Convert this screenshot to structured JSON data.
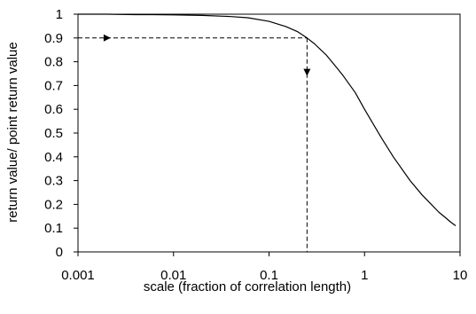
{
  "chart_data": {
    "type": "line",
    "title": "",
    "xlabel": "scale (fraction of correlation length)",
    "ylabel": "return value/ point return value",
    "x_scale": "log",
    "xlim": [
      0.001,
      10
    ],
    "ylim": [
      0,
      1
    ],
    "x_ticks": [
      0.001,
      0.01,
      0.1,
      1,
      10
    ],
    "x_tick_labels": [
      "0.001",
      "0.01",
      "0.1",
      "1",
      "10"
    ],
    "y_ticks": [
      0,
      0.1,
      0.2,
      0.3,
      0.4,
      0.5,
      0.6,
      0.7,
      0.8,
      0.9,
      1
    ],
    "y_tick_labels": [
      "0",
      "0.1",
      "0.2",
      "0.3",
      "0.4",
      "0.5",
      "0.6",
      "0.7",
      "0.8",
      "0.9",
      "1"
    ],
    "grid": false,
    "legend": "none",
    "series": [
      {
        "color": "#000000",
        "style": "solid",
        "x": [
          0.001,
          0.002,
          0.004,
          0.006,
          0.01,
          0.02,
          0.04,
          0.06,
          0.1,
          0.15,
          0.2,
          0.25,
          0.3,
          0.4,
          0.5,
          0.6,
          0.8,
          1,
          1.5,
          2,
          3,
          4,
          5,
          6,
          7,
          8,
          9
        ],
        "y": [
          1.0,
          1.0,
          0.998,
          0.998,
          0.997,
          0.995,
          0.99,
          0.985,
          0.97,
          0.948,
          0.926,
          0.9,
          0.875,
          0.827,
          0.78,
          0.74,
          0.67,
          0.6,
          0.48,
          0.4,
          0.3,
          0.24,
          0.2,
          0.167,
          0.145,
          0.125,
          0.11
        ]
      }
    ],
    "annotations": [
      {
        "type": "dashed-horizontal-guide",
        "from": [
          0.001,
          0.9
        ],
        "to": [
          0.25,
          0.9
        ],
        "arrow": {
          "at": [
            0.0022,
            0.9
          ],
          "direction": "right"
        }
      },
      {
        "type": "dashed-vertical-guide",
        "from": [
          0.25,
          0.9
        ],
        "to": [
          0.25,
          0
        ],
        "arrow": {
          "at": [
            0.25,
            0.74
          ],
          "direction": "down"
        }
      }
    ]
  }
}
